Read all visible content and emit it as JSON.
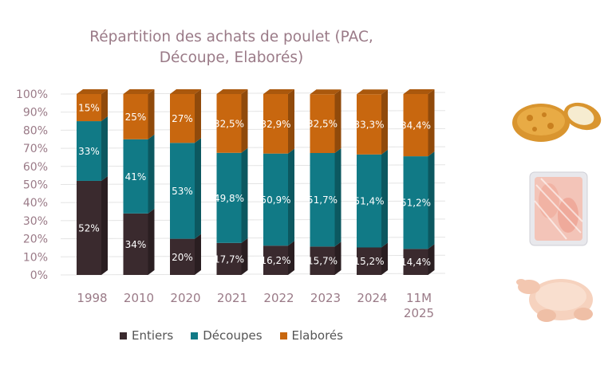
{
  "title_line1": "Répartition des achats de poulet (PAC,",
  "title_line2": "Découpe, Elaborés)",
  "chart_data": {
    "type": "bar",
    "stacked": true,
    "title": "Répartition des achats de poulet (PAC, Découpe, Elaborés)",
    "categories": [
      "1998",
      "2010",
      "2020",
      "2021",
      "2022",
      "2023",
      "2024",
      "11M 2025"
    ],
    "category_lines": [
      [
        "1998"
      ],
      [
        "2010"
      ],
      [
        "2020"
      ],
      [
        "2021"
      ],
      [
        "2022"
      ],
      [
        "2023"
      ],
      [
        "2024"
      ],
      [
        "11M",
        "2025"
      ]
    ],
    "y_ticks": [
      "0%",
      "10%",
      "20%",
      "30%",
      "40%",
      "50%",
      "60%",
      "70%",
      "80%",
      "90%",
      "100%"
    ],
    "ylim": [
      0,
      100
    ],
    "grid": true,
    "legend_position": "bottom",
    "series": [
      {
        "name": "Entiers",
        "color": "#3a2a2e",
        "values": [
          52,
          34,
          20,
          17.7,
          16.2,
          15.7,
          15.2,
          14.4
        ],
        "labels": [
          "52%",
          "34%",
          "20%",
          "17,7%",
          "16,2%",
          "15,7%",
          "15,2%",
          "14,4%"
        ]
      },
      {
        "name": "Découpes",
        "color": "#117a86",
        "values": [
          33,
          41,
          53,
          49.8,
          50.9,
          51.7,
          51.4,
          51.2
        ],
        "labels": [
          "33%",
          "41%",
          "53%",
          "49,8%",
          "50,9%",
          "51,7%",
          "51,4%",
          "51,2%"
        ]
      },
      {
        "name": "Elaborés",
        "color": "#c8670f",
        "values": [
          15,
          25,
          27,
          32.5,
          32.9,
          32.5,
          33.3,
          34.4
        ],
        "labels": [
          "15%",
          "25%",
          "27%",
          "32,5%",
          "32,9%",
          "32,5%",
          "33,3%",
          "34,4%"
        ]
      }
    ]
  }
}
